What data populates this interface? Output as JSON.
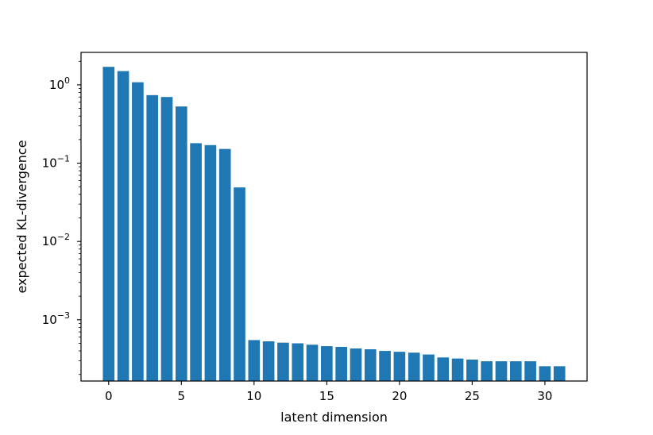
{
  "chart_data": {
    "type": "bar",
    "scale": {
      "y": "log"
    },
    "xlabel": "latent dimension",
    "ylabel": "expected KL-divergence",
    "x": [
      0,
      1,
      2,
      3,
      4,
      5,
      6,
      7,
      8,
      9,
      10,
      11,
      12,
      13,
      14,
      15,
      16,
      17,
      18,
      19,
      20,
      21,
      22,
      23,
      24,
      25,
      26,
      27,
      28,
      29,
      30,
      31
    ],
    "values": [
      1.7,
      1.5,
      1.08,
      0.74,
      0.7,
      0.53,
      0.18,
      0.17,
      0.152,
      0.049,
      0.00055,
      0.00053,
      0.00051,
      0.0005,
      0.00048,
      0.00046,
      0.00045,
      0.00043,
      0.00042,
      0.0004,
      0.00039,
      0.00038,
      0.00036,
      0.00033,
      0.00032,
      0.00031,
      0.000295,
      0.000295,
      0.000295,
      0.000295,
      0.000255,
      0.000255
    ],
    "xlim": [
      -1.9,
      32.9
    ],
    "ylim": [
      0.000165,
      2.6
    ],
    "xticks": [
      0,
      5,
      10,
      15,
      20,
      25,
      30
    ],
    "yticks": [
      {
        "value": 1,
        "base": "10",
        "exp": "0"
      },
      {
        "value": 0.1,
        "base": "10",
        "exp": "−1"
      },
      {
        "value": 0.01,
        "base": "10",
        "exp": "−2"
      },
      {
        "value": 0.001,
        "base": "10",
        "exp": "−3"
      }
    ],
    "colors": {
      "bar": "#1f77b4"
    },
    "grid": false,
    "legend": "none"
  }
}
